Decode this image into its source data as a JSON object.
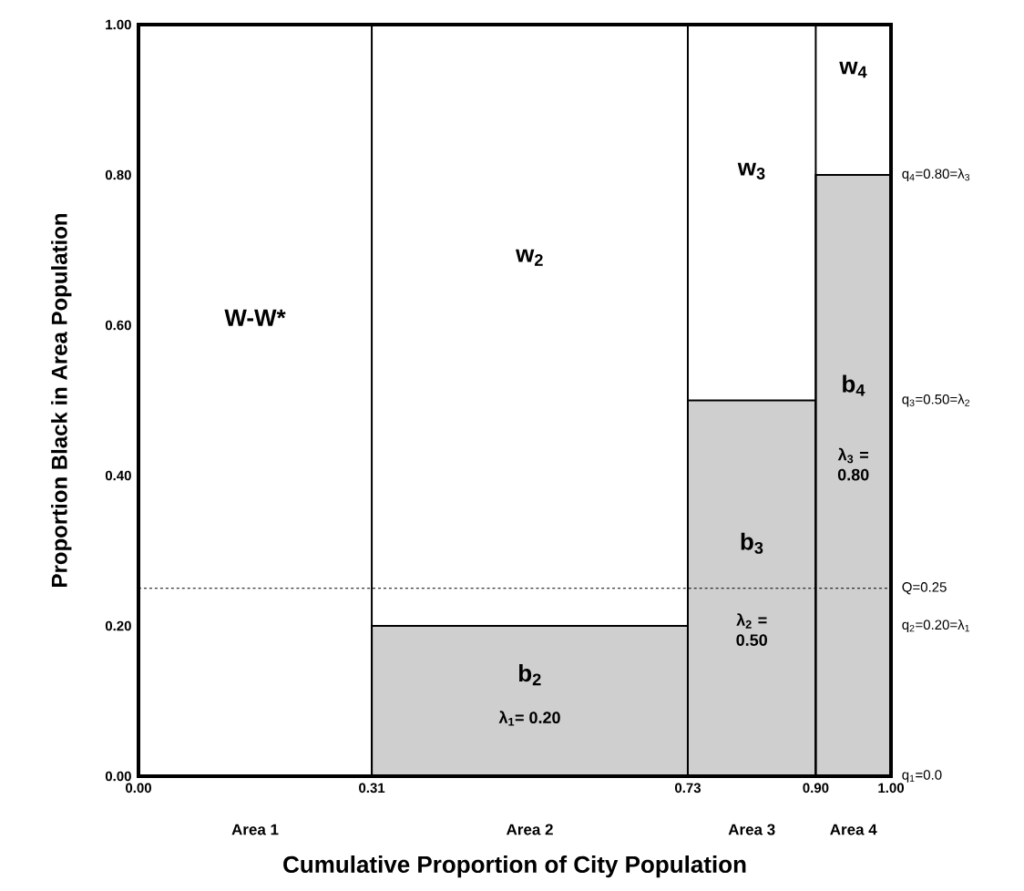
{
  "chart_data": {
    "type": "histogram",
    "xlabel": "Cumulative Proportion of City Population",
    "ylabel": "Proportion Black in Area Population",
    "bins": [
      0.31,
      0.73,
      0.9,
      1.0
    ],
    "values": [
      0.2,
      0.5,
      0.8
    ],
    "color": "#cfcfcf",
    "xlim": [
      0,
      1
    ],
    "ylim": [
      0,
      1
    ],
    "xticks": [
      {
        "value": 0,
        "label": "0.00"
      },
      0.31,
      0.73,
      {
        "value": 0.9,
        "label": "0.90"
      },
      {
        "value": 1,
        "label": "1.00"
      }
    ],
    "yticks": [
      {
        "value": 0,
        "label": "0.00"
      },
      {
        "value": 0.2,
        "label": "0.20"
      },
      {
        "value": 0.4,
        "label": "0.40"
      },
      {
        "value": 0.6,
        "label": "0.60"
      },
      {
        "value": 0.8,
        "label": "0.80"
      },
      {
        "value": 1,
        "label": "1.00"
      }
    ],
    "grid": "x",
    "ref_lines": [
      {
        "axis": "y",
        "value": 0.25,
        "line_style": "dashed",
        "label": "Q=0.25"
      }
    ],
    "annotations": [
      "Area 1",
      "Area 2",
      "Area 3",
      "Area 4",
      "W-W*",
      "w$_{2}$",
      "w$_{3}$",
      "w$_{4}$",
      "b$_{2}$",
      "λ$_{1}$= 0.20",
      "b$_{3}$",
      "λ$_{2}$ = 0.50",
      "b$_{4}$",
      "λ$_{3}$ = 0.80",
      "q$_{1}$=0.0",
      "q$_{2}$=0.20=λ$_{1}$",
      "q$_{3}$=0.50=λ$_{2}$",
      "q$_{4}$=0.80=λ$_{3}$"
    ]
  }
}
